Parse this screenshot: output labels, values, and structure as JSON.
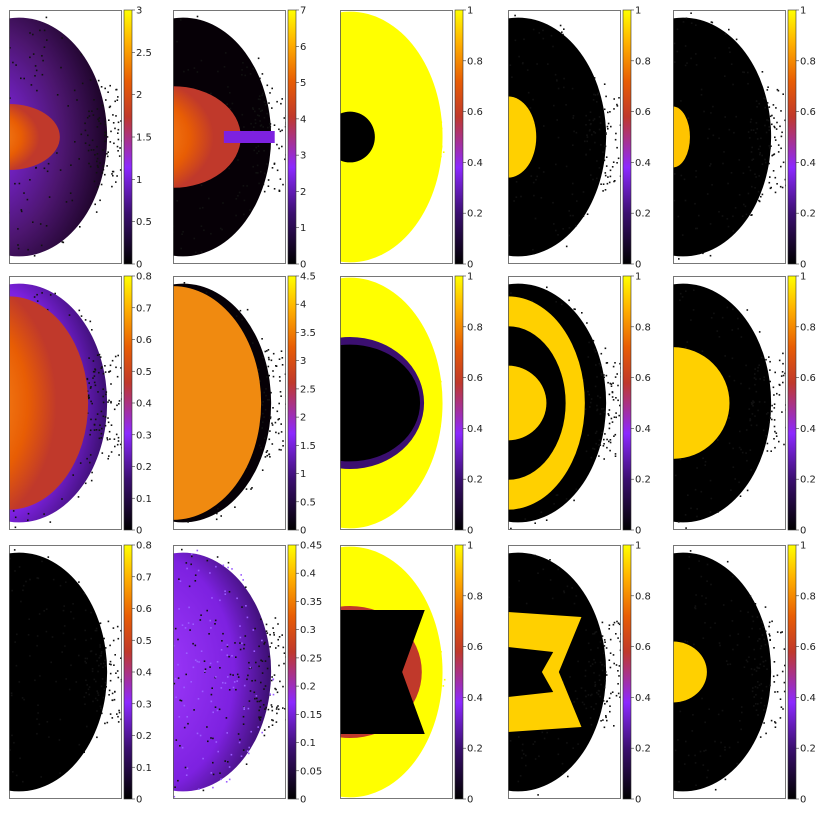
{
  "chart_data": {
    "type": "heatmap",
    "layout": {
      "rows": 3,
      "columns": 5
    },
    "colormap": [
      "#000000",
      "#3b0f70",
      "#8c29ff",
      "#c0392b",
      "#e85d04",
      "#ffb000",
      "#ffff00"
    ],
    "panels": [
      {
        "row": 0,
        "col": 0,
        "cbar_range": [
          0,
          3
        ],
        "ticks": [
          "0",
          "0.5",
          "1",
          "1.5",
          "2",
          "2.5",
          "3"
        ]
      },
      {
        "row": 0,
        "col": 1,
        "cbar_range": [
          0,
          7
        ],
        "ticks": [
          "0",
          "1",
          "2",
          "3",
          "4",
          "5",
          "6",
          "7"
        ]
      },
      {
        "row": 0,
        "col": 2,
        "cbar_range": [
          0,
          1
        ],
        "ticks": [
          "0",
          "0.2",
          "0.4",
          "0.6",
          "0.8",
          "1"
        ]
      },
      {
        "row": 0,
        "col": 3,
        "cbar_range": [
          0,
          1
        ],
        "ticks": [
          "0",
          "0.2",
          "0.4",
          "0.6",
          "0.8",
          "1"
        ]
      },
      {
        "row": 0,
        "col": 4,
        "cbar_range": [
          0,
          1
        ],
        "ticks": [
          "0",
          "0.2",
          "0.4",
          "0.6",
          "0.8",
          "1"
        ]
      },
      {
        "row": 1,
        "col": 0,
        "cbar_range": [
          0,
          0.8
        ],
        "ticks": [
          "0",
          "0.1",
          "0.2",
          "0.3",
          "0.4",
          "0.5",
          "0.6",
          "0.7",
          "0.8"
        ]
      },
      {
        "row": 1,
        "col": 1,
        "cbar_range": [
          0,
          4.5
        ],
        "ticks": [
          "0",
          "0.5",
          "1",
          "1.5",
          "2",
          "2.5",
          "3",
          "3.5",
          "4",
          "4.5"
        ]
      },
      {
        "row": 1,
        "col": 2,
        "cbar_range": [
          0,
          1
        ],
        "ticks": [
          "0",
          "0.2",
          "0.4",
          "0.6",
          "0.8",
          "1"
        ]
      },
      {
        "row": 1,
        "col": 3,
        "cbar_range": [
          0,
          1
        ],
        "ticks": [
          "0",
          "0.2",
          "0.4",
          "0.6",
          "0.8",
          "1"
        ]
      },
      {
        "row": 1,
        "col": 4,
        "cbar_range": [
          0,
          1
        ],
        "ticks": [
          "0",
          "0.2",
          "0.4",
          "0.6",
          "0.8",
          "1"
        ]
      },
      {
        "row": 2,
        "col": 0,
        "cbar_range": [
          0,
          0.8
        ],
        "ticks": [
          "0",
          "0.1",
          "0.2",
          "0.3",
          "0.4",
          "0.5",
          "0.6",
          "0.7",
          "0.8"
        ]
      },
      {
        "row": 2,
        "col": 1,
        "cbar_range": [
          0,
          0.45
        ],
        "ticks": [
          "0",
          "0.05",
          "0.1",
          "0.15",
          "0.2",
          "0.25",
          "0.3",
          "0.35",
          "0.4",
          "0.45"
        ]
      },
      {
        "row": 2,
        "col": 2,
        "cbar_range": [
          0,
          1
        ],
        "ticks": [
          "0",
          "0.2",
          "0.4",
          "0.6",
          "0.8",
          "1"
        ]
      },
      {
        "row": 2,
        "col": 3,
        "cbar_range": [
          0,
          1
        ],
        "ticks": [
          "0",
          "0.2",
          "0.4",
          "0.6",
          "0.8",
          "1"
        ]
      },
      {
        "row": 2,
        "col": 4,
        "cbar_range": [
          0,
          1
        ],
        "ticks": [
          "0",
          "0.2",
          "0.4",
          "0.6",
          "0.8",
          "1"
        ]
      }
    ]
  }
}
